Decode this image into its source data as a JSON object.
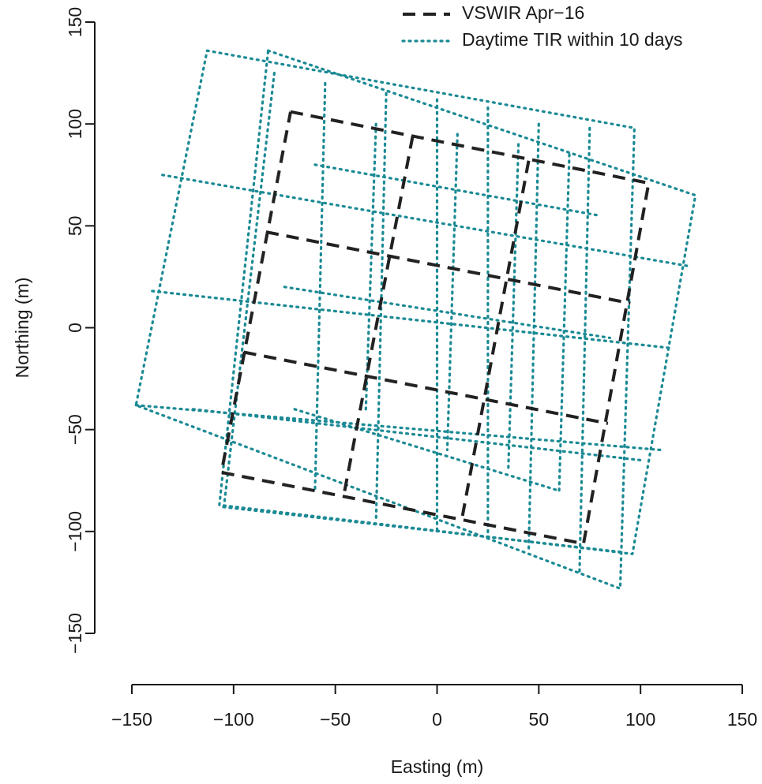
{
  "chart_data": {
    "type": "line",
    "xlabel": "Easting (m)",
    "ylabel": "Northing (m)",
    "xlim": [
      -150,
      150
    ],
    "ylim": [
      -150,
      150
    ],
    "xticks": [
      "-150",
      "-100",
      "-50",
      "0",
      "50",
      "100",
      "150"
    ],
    "yticks": [
      "-150",
      "-100",
      "-50",
      "0",
      "50",
      "100",
      "150"
    ],
    "grid": false,
    "legend_position": "top-right",
    "series": [
      {
        "name": "VSWIR Apr−16",
        "style": "dashed",
        "color": "#222222",
        "polylines": [
          [
            [
              -72,
              106
            ],
            [
              104,
              71
            ],
            [
              72,
              -106
            ],
            [
              -106,
              -71
            ],
            [
              -72,
              106
            ]
          ],
          [
            [
              -84,
              47
            ],
            [
              95,
              12
            ]
          ],
          [
            [
              -95,
              -12
            ],
            [
              84,
              -47
            ]
          ],
          [
            [
              -12,
              94
            ],
            [
              -46,
              -83
            ]
          ],
          [
            [
              45,
              82
            ],
            [
              12,
              -95
            ]
          ]
        ]
      },
      {
        "name": "Daytime TIR within 10 days",
        "style": "dotted",
        "color": "#1a8a94",
        "polylines": [
          [
            [
              -113,
              136
            ],
            [
              97,
              98
            ],
            [
              90,
              -128
            ],
            [
              -148,
              -38
            ],
            [
              -113,
              136
            ]
          ],
          [
            [
              -83,
              136
            ],
            [
              127,
              65
            ],
            [
              96,
              -111
            ],
            [
              -107,
              -87
            ],
            [
              -83,
              136
            ]
          ],
          [
            [
              -135,
              75
            ],
            [
              125,
              30
            ]
          ],
          [
            [
              -140,
              18
            ],
            [
              115,
              -10
            ]
          ],
          [
            [
              -148,
              -38
            ],
            [
              110,
              -60
            ]
          ],
          [
            [
              -120,
              -40
            ],
            [
              100,
              -65
            ]
          ],
          [
            [
              -105,
              -88
            ],
            [
              90,
              -110
            ]
          ],
          [
            [
              -60,
              80
            ],
            [
              80,
              55
            ]
          ],
          [
            [
              -75,
              20
            ],
            [
              85,
              -5
            ]
          ],
          [
            [
              -70,
              -40
            ],
            [
              60,
              -80
            ]
          ],
          [
            [
              -80,
              125
            ],
            [
              -105,
              -90
            ]
          ],
          [
            [
              -55,
              120
            ],
            [
              -60,
              -80
            ]
          ],
          [
            [
              -25,
              115
            ],
            [
              -30,
              -95
            ]
          ],
          [
            [
              0,
              112
            ],
            [
              0,
              -100
            ]
          ],
          [
            [
              25,
              108
            ],
            [
              25,
              -105
            ]
          ],
          [
            [
              50,
              100
            ],
            [
              45,
              -110
            ]
          ],
          [
            [
              75,
              98
            ],
            [
              70,
              -120
            ]
          ],
          [
            [
              -30,
              100
            ],
            [
              -35,
              -40
            ]
          ],
          [
            [
              10,
              95
            ],
            [
              5,
              -60
            ]
          ],
          [
            [
              40,
              90
            ],
            [
              35,
              -70
            ]
          ],
          [
            [
              65,
              85
            ],
            [
              60,
              -80
            ]
          ]
        ]
      }
    ]
  }
}
